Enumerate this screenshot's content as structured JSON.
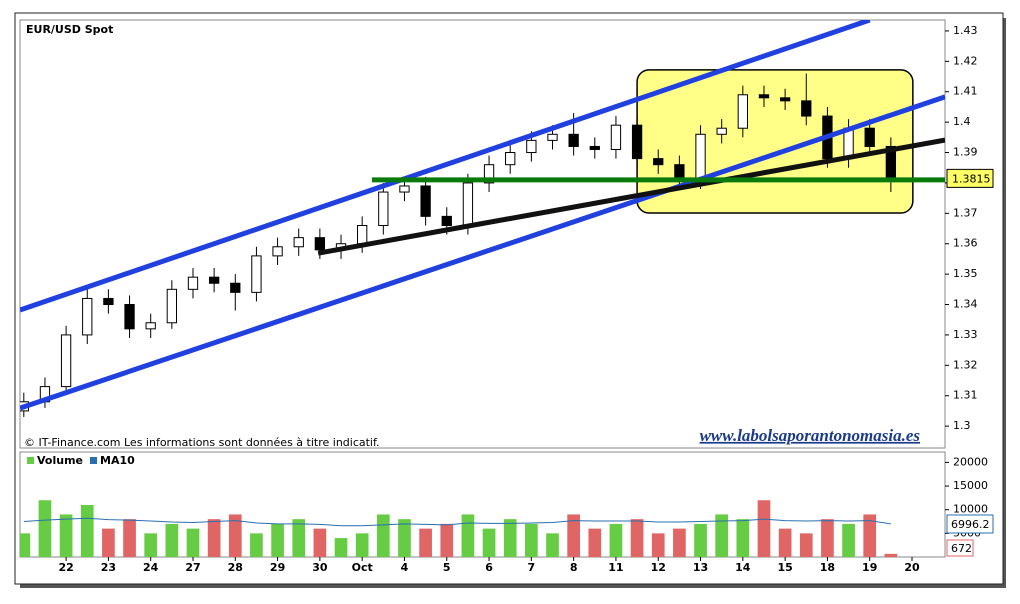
{
  "chart_data": {
    "type": "candlestick",
    "title": "EUR/USD Spot",
    "footnote": "© IT-Finance.com Les informations sont données à titre indicatif.",
    "watermark": "www.labolsaporantonomasia.es",
    "x": [
      -1,
      -0.5,
      0,
      0.5,
      1,
      1.5,
      2,
      2.5,
      3,
      3.5,
      4,
      4.5,
      5,
      5.5,
      6,
      6.5,
      7,
      7.5,
      8,
      8.5,
      9,
      9.5,
      10,
      10.5,
      11,
      11.5,
      12,
      12.5,
      13,
      13.5,
      14,
      14.5,
      15,
      15.5,
      16,
      16.5,
      17,
      17.5,
      18,
      18.5,
      19,
      19.5
    ],
    "open": [
      1.305,
      1.308,
      1.313,
      1.33,
      1.342,
      1.34,
      1.332,
      1.334,
      1.345,
      1.349,
      1.347,
      1.344,
      1.356,
      1.359,
      1.362,
      1.358,
      1.36,
      1.366,
      1.377,
      1.379,
      1.369,
      1.366,
      1.38,
      1.386,
      1.39,
      1.394,
      1.396,
      1.392,
      1.391,
      1.399,
      1.388,
      1.386,
      1.381,
      1.396,
      1.398,
      1.409,
      1.408,
      1.407,
      1.402,
      1.388,
      1.398,
      1.392
    ],
    "high": [
      1.311,
      1.316,
      1.333,
      1.345,
      1.345,
      1.343,
      1.337,
      1.348,
      1.352,
      1.352,
      1.35,
      1.359,
      1.362,
      1.365,
      1.365,
      1.363,
      1.369,
      1.38,
      1.382,
      1.382,
      1.372,
      1.383,
      1.389,
      1.393,
      1.397,
      1.399,
      1.403,
      1.395,
      1.402,
      1.402,
      1.391,
      1.389,
      1.399,
      1.401,
      1.412,
      1.412,
      1.411,
      1.416,
      1.405,
      1.401,
      1.401,
      1.395
    ],
    "low": [
      1.303,
      1.306,
      1.311,
      1.327,
      1.337,
      1.329,
      1.329,
      1.332,
      1.342,
      1.344,
      1.338,
      1.341,
      1.353,
      1.356,
      1.355,
      1.355,
      1.357,
      1.363,
      1.374,
      1.366,
      1.363,
      1.363,
      1.377,
      1.383,
      1.387,
      1.391,
      1.389,
      1.388,
      1.388,
      1.385,
      1.383,
      1.378,
      1.378,
      1.393,
      1.395,
      1.405,
      1.404,
      1.399,
      1.385,
      1.385,
      1.389,
      1.377
    ],
    "close": [
      1.308,
      1.313,
      1.33,
      1.342,
      1.34,
      1.332,
      1.334,
      1.345,
      1.349,
      1.347,
      1.344,
      1.356,
      1.359,
      1.362,
      1.358,
      1.36,
      1.366,
      1.377,
      1.379,
      1.369,
      1.366,
      1.38,
      1.386,
      1.39,
      1.394,
      1.396,
      1.392,
      1.391,
      1.399,
      1.388,
      1.386,
      1.381,
      1.396,
      1.398,
      1.409,
      1.408,
      1.407,
      1.402,
      1.388,
      1.398,
      1.392,
      1.3815
    ],
    "up_color": "#ffffff",
    "down_color": "#000000",
    "last_color": "#ffff66",
    "xlim": [
      -1.09,
      20.78
    ],
    "xticks": [
      {
        "value": 0,
        "label": "22"
      },
      {
        "value": 1,
        "label": "23"
      },
      {
        "value": 2,
        "label": "24"
      },
      {
        "value": 3,
        "label": "27"
      },
      {
        "value": 4,
        "label": "28"
      },
      {
        "value": 5,
        "label": "29"
      },
      {
        "value": 6,
        "label": "30"
      },
      {
        "value": 7,
        "label": "Oct"
      },
      {
        "value": 8,
        "label": "4"
      },
      {
        "value": 9,
        "label": "5"
      },
      {
        "value": 10,
        "label": "6"
      },
      {
        "value": 11,
        "label": "7"
      },
      {
        "value": 12,
        "label": "8"
      },
      {
        "value": 13,
        "label": "11"
      },
      {
        "value": 14,
        "label": "12"
      },
      {
        "value": 15,
        "label": "13"
      },
      {
        "value": 16,
        "label": "14"
      },
      {
        "value": 17,
        "label": "15"
      },
      {
        "value": 18,
        "label": "18"
      },
      {
        "value": 19,
        "label": "19"
      },
      {
        "value": 20,
        "label": "20"
      }
    ],
    "ylim": [
      1.2928,
      1.4336
    ],
    "yticks": [
      1.3,
      1.31,
      1.32,
      1.33,
      1.34,
      1.35,
      1.36,
      1.37,
      1.38,
      1.39,
      1.4,
      1.41,
      1.42,
      1.43
    ],
    "annotations": [
      {
        "x": [
          -1.09,
          19.0
        ],
        "y": [
          1.3382,
          1.4336
        ],
        "color": "#2040e0"
      },
      {
        "x": [
          -1.09,
          20.78
        ],
        "y": [
          1.3059,
          1.4083
        ],
        "color": "#2040e0"
      },
      {
        "x": [
          5.96,
          20.78
        ],
        "y": [
          1.3569,
          1.3941
        ],
        "color": "#111111"
      },
      {
        "x": [
          7.23,
          20.78
        ],
        "y": [
          1.381,
          1.381
        ],
        "color": "#0a7a0a"
      }
    ],
    "highlight": {
      "x": [
        13.5,
        20.02
      ],
      "y": [
        1.3701,
        1.4172
      ],
      "color": "#ffff88"
    },
    "volume_panel": {
      "ylim": [
        0,
        22200
      ],
      "yticks": [
        5000,
        10000,
        15000,
        20000
      ],
      "series": [
        {
          "name": "Volume",
          "up_color": "#66cc44",
          "down_color": "#e06666",
          "values": [
            5000,
            12000,
            9000,
            11000,
            6000,
            8000,
            5000,
            7000,
            6000,
            8000,
            9000,
            5000,
            7000,
            8000,
            6000,
            4000,
            5000,
            9000,
            8000,
            6000,
            7000,
            9000,
            6000,
            8000,
            7000,
            5000,
            9000,
            6000,
            7000,
            8000,
            5000,
            6000,
            7000,
            9000,
            8000,
            12000,
            6000,
            5000,
            8000,
            7000,
            9000,
            672
          ]
        },
        {
          "name": "MA10",
          "color": "#2a6fb0",
          "values": [
            7500,
            7800,
            8000,
            8200,
            7900,
            7800,
            7600,
            7400,
            7300,
            7500,
            7700,
            7200,
            7000,
            7000,
            6900,
            6600,
            6600,
            6800,
            7000,
            6900,
            6800,
            7200,
            7100,
            7100,
            7200,
            7300,
            7700,
            7600,
            7600,
            7600,
            7400,
            7400,
            7500,
            7600,
            7700,
            8000,
            7700,
            7600,
            7700,
            7600,
            7700,
            6996.2
          ]
        }
      ]
    }
  }
}
